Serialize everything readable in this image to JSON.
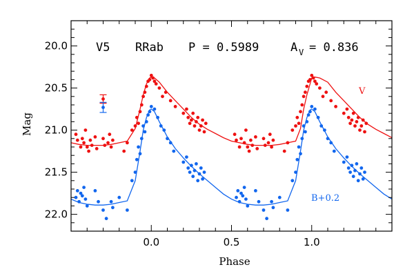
{
  "chart_data": {
    "type": "scatter",
    "title": "",
    "xlabel": "Phase",
    "ylabel": "Mag",
    "xlim": [
      -0.5,
      1.5
    ],
    "ylim": [
      22.2,
      19.7
    ],
    "y_inverted": true,
    "x_ticks": [
      "0.0",
      "0.5",
      "1.0"
    ],
    "y_ticks": [
      "20.0",
      "20.5",
      "21.0",
      "21.5",
      "22.0"
    ],
    "annotations": {
      "star": "V5",
      "type": "RRab",
      "period": "P = 0.5989",
      "amp_label": "A",
      "amp_sub": "V",
      "amp_value": "= 0.836"
    },
    "colors": {
      "V": "#ee1111",
      "B": "#1166ee"
    },
    "series": [
      {
        "name": "V",
        "label": "V",
        "color": "#ee1111",
        "fit_phase": [
          -0.5,
          -0.45,
          -0.4,
          -0.35,
          -0.3,
          -0.25,
          -0.2,
          -0.15,
          -0.1,
          -0.07,
          -0.05,
          -0.03,
          -0.01,
          0.0,
          0.02,
          0.05,
          0.1,
          0.15,
          0.2,
          0.25,
          0.3,
          0.35,
          0.4,
          0.45,
          0.5,
          0.55,
          0.6,
          0.65,
          0.7,
          0.75,
          0.8,
          0.85,
          0.9,
          0.93,
          0.95,
          0.97,
          0.99,
          1.0,
          1.02,
          1.05,
          1.1,
          1.15,
          1.2,
          1.25,
          1.3,
          1.35,
          1.4,
          1.45,
          1.5
        ],
        "fit_mag": [
          21.15,
          21.17,
          21.18,
          21.18,
          21.18,
          21.17,
          21.15,
          21.13,
          20.98,
          20.75,
          20.58,
          20.45,
          20.38,
          20.37,
          20.38,
          20.43,
          20.55,
          20.65,
          20.75,
          20.85,
          20.93,
          20.99,
          21.04,
          21.09,
          21.13,
          21.15,
          21.17,
          21.18,
          21.18,
          21.18,
          21.17,
          21.15,
          21.13,
          20.98,
          20.75,
          20.58,
          20.45,
          20.38,
          20.37,
          20.38,
          20.43,
          20.55,
          20.65,
          20.75,
          20.85,
          20.93,
          20.99,
          21.04,
          21.09
        ],
        "points": [
          [
            -0.47,
            21.05
          ],
          [
            -0.46,
            21.12
          ],
          [
            -0.44,
            21.2
          ],
          [
            -0.43,
            21.1
          ],
          [
            -0.42,
            21.15
          ],
          [
            -0.41,
            21.0
          ],
          [
            -0.4,
            21.2
          ],
          [
            -0.39,
            21.25
          ],
          [
            -0.38,
            21.12
          ],
          [
            -0.37,
            21.18
          ],
          [
            -0.35,
            21.08
          ],
          [
            -0.34,
            21.22
          ],
          [
            -0.3,
            21.1
          ],
          [
            -0.29,
            21.18
          ],
          [
            -0.27,
            21.15
          ],
          [
            -0.26,
            21.05
          ],
          [
            -0.25,
            21.2
          ],
          [
            -0.24,
            21.12
          ],
          [
            -0.17,
            21.25
          ],
          [
            -0.15,
            21.15
          ],
          [
            -0.12,
            21.0
          ],
          [
            -0.1,
            20.95
          ],
          [
            -0.09,
            20.85
          ],
          [
            -0.08,
            20.92
          ],
          [
            -0.07,
            20.78
          ],
          [
            -0.06,
            20.7
          ],
          [
            -0.05,
            20.6
          ],
          [
            -0.04,
            20.55
          ],
          [
            -0.03,
            20.48
          ],
          [
            -0.02,
            20.42
          ],
          [
            -0.01,
            20.4
          ],
          [
            0.0,
            20.35
          ],
          [
            0.01,
            20.38
          ],
          [
            0.02,
            20.42
          ],
          [
            0.03,
            20.45
          ],
          [
            0.05,
            20.5
          ],
          [
            0.07,
            20.6
          ],
          [
            0.09,
            20.55
          ],
          [
            0.12,
            20.65
          ],
          [
            0.15,
            20.72
          ],
          [
            0.2,
            20.8
          ],
          [
            0.22,
            20.75
          ],
          [
            0.23,
            20.85
          ],
          [
            0.24,
            20.92
          ],
          [
            0.25,
            20.88
          ],
          [
            0.26,
            20.8
          ],
          [
            0.27,
            20.95
          ],
          [
            0.28,
            20.9
          ],
          [
            0.29,
            20.85
          ],
          [
            0.3,
            21.0
          ],
          [
            0.31,
            20.95
          ],
          [
            0.32,
            20.88
          ],
          [
            0.33,
            21.02
          ],
          [
            0.34,
            20.92
          ],
          [
            0.52,
            21.05
          ],
          [
            0.53,
            21.12
          ],
          [
            0.55,
            21.2
          ],
          [
            0.56,
            21.1
          ],
          [
            0.58,
            21.15
          ],
          [
            0.59,
            21.0
          ],
          [
            0.6,
            21.2
          ],
          [
            0.61,
            21.25
          ],
          [
            0.62,
            21.12
          ],
          [
            0.63,
            21.18
          ],
          [
            0.65,
            21.08
          ],
          [
            0.66,
            21.22
          ],
          [
            0.7,
            21.1
          ],
          [
            0.71,
            21.18
          ],
          [
            0.73,
            21.15
          ],
          [
            0.74,
            21.05
          ],
          [
            0.75,
            21.2
          ],
          [
            0.76,
            21.12
          ],
          [
            0.83,
            21.25
          ],
          [
            0.85,
            21.15
          ],
          [
            0.88,
            21.0
          ],
          [
            0.9,
            20.95
          ],
          [
            0.91,
            20.85
          ],
          [
            0.92,
            20.92
          ],
          [
            0.93,
            20.78
          ],
          [
            0.94,
            20.7
          ],
          [
            0.95,
            20.6
          ],
          [
            0.96,
            20.55
          ],
          [
            0.97,
            20.48
          ],
          [
            0.98,
            20.42
          ],
          [
            0.99,
            20.4
          ],
          [
            1.0,
            20.35
          ],
          [
            1.01,
            20.38
          ],
          [
            1.02,
            20.42
          ],
          [
            1.03,
            20.45
          ],
          [
            1.05,
            20.5
          ],
          [
            1.07,
            20.6
          ],
          [
            1.09,
            20.55
          ],
          [
            1.12,
            20.65
          ],
          [
            1.15,
            20.72
          ],
          [
            1.2,
            20.8
          ],
          [
            1.22,
            20.75
          ],
          [
            1.23,
            20.85
          ],
          [
            1.24,
            20.92
          ],
          [
            1.25,
            20.88
          ],
          [
            1.26,
            20.8
          ],
          [
            1.27,
            20.95
          ],
          [
            1.28,
            20.9
          ],
          [
            1.29,
            20.85
          ],
          [
            1.3,
            21.0
          ],
          [
            1.31,
            20.95
          ],
          [
            1.32,
            20.88
          ],
          [
            1.33,
            21.02
          ],
          [
            1.34,
            20.92
          ]
        ]
      },
      {
        "name": "B",
        "label": "B+0.2",
        "color": "#1166ee",
        "fit_phase": [
          -0.5,
          -0.45,
          -0.4,
          -0.35,
          -0.3,
          -0.25,
          -0.2,
          -0.15,
          -0.1,
          -0.07,
          -0.05,
          -0.03,
          -0.01,
          0.0,
          0.02,
          0.05,
          0.1,
          0.15,
          0.2,
          0.25,
          0.3,
          0.35,
          0.4,
          0.45,
          0.5,
          0.55,
          0.6,
          0.65,
          0.7,
          0.75,
          0.8,
          0.85,
          0.9,
          0.93,
          0.95,
          0.97,
          0.99,
          1.0,
          1.02,
          1.05,
          1.1,
          1.15,
          1.2,
          1.25,
          1.3,
          1.35,
          1.4,
          1.45,
          1.5
        ],
        "fit_mag": [
          21.82,
          21.86,
          21.88,
          21.89,
          21.89,
          21.88,
          21.86,
          21.84,
          21.6,
          21.25,
          21.0,
          20.85,
          20.76,
          20.75,
          20.78,
          20.9,
          21.08,
          21.22,
          21.33,
          21.43,
          21.52,
          21.6,
          21.68,
          21.76,
          21.82,
          21.86,
          21.88,
          21.89,
          21.89,
          21.88,
          21.86,
          21.84,
          21.6,
          21.25,
          21.0,
          20.85,
          20.76,
          20.75,
          20.78,
          20.9,
          21.08,
          21.22,
          21.33,
          21.43,
          21.52,
          21.6,
          21.68,
          21.76,
          21.82
        ],
        "points": [
          [
            -0.47,
            21.8
          ],
          [
            -0.46,
            21.72
          ],
          [
            -0.45,
            21.85
          ],
          [
            -0.44,
            21.75
          ],
          [
            -0.43,
            21.78
          ],
          [
            -0.42,
            21.68
          ],
          [
            -0.41,
            21.82
          ],
          [
            -0.4,
            21.9
          ],
          [
            -0.35,
            21.72
          ],
          [
            -0.33,
            21.85
          ],
          [
            -0.3,
            21.95
          ],
          [
            -0.28,
            22.05
          ],
          [
            -0.25,
            21.85
          ],
          [
            -0.24,
            21.92
          ],
          [
            -0.2,
            21.8
          ],
          [
            -0.15,
            21.95
          ],
          [
            -0.12,
            21.6
          ],
          [
            -0.1,
            21.5
          ],
          [
            -0.09,
            21.35
          ],
          [
            -0.08,
            21.2
          ],
          [
            -0.07,
            21.28
          ],
          [
            -0.06,
            21.1
          ],
          [
            -0.05,
            20.95
          ],
          [
            -0.04,
            21.02
          ],
          [
            -0.03,
            20.9
          ],
          [
            -0.02,
            20.82
          ],
          [
            -0.01,
            20.78
          ],
          [
            0.0,
            20.72
          ],
          [
            0.02,
            20.75
          ],
          [
            0.04,
            20.85
          ],
          [
            0.06,
            20.95
          ],
          [
            0.08,
            21.0
          ],
          [
            0.1,
            21.1
          ],
          [
            0.12,
            21.15
          ],
          [
            0.14,
            21.25
          ],
          [
            0.2,
            21.38
          ],
          [
            0.22,
            21.32
          ],
          [
            0.23,
            21.45
          ],
          [
            0.24,
            21.5
          ],
          [
            0.25,
            21.42
          ],
          [
            0.26,
            21.55
          ],
          [
            0.27,
            21.48
          ],
          [
            0.28,
            21.4
          ],
          [
            0.29,
            21.6
          ],
          [
            0.3,
            21.52
          ],
          [
            0.31,
            21.45
          ],
          [
            0.32,
            21.58
          ],
          [
            0.33,
            21.5
          ],
          [
            0.53,
            21.8
          ],
          [
            0.54,
            21.72
          ],
          [
            0.55,
            21.85
          ],
          [
            0.56,
            21.75
          ],
          [
            0.57,
            21.78
          ],
          [
            0.58,
            21.68
          ],
          [
            0.59,
            21.82
          ],
          [
            0.6,
            21.9
          ],
          [
            0.65,
            21.72
          ],
          [
            0.67,
            21.85
          ],
          [
            0.7,
            21.95
          ],
          [
            0.72,
            22.05
          ],
          [
            0.75,
            21.85
          ],
          [
            0.76,
            21.92
          ],
          [
            0.8,
            21.8
          ],
          [
            0.85,
            21.95
          ],
          [
            0.88,
            21.6
          ],
          [
            0.9,
            21.5
          ],
          [
            0.91,
            21.35
          ],
          [
            0.92,
            21.2
          ],
          [
            0.93,
            21.28
          ],
          [
            0.94,
            21.1
          ],
          [
            0.95,
            20.95
          ],
          [
            0.96,
            21.02
          ],
          [
            0.97,
            20.9
          ],
          [
            0.98,
            20.82
          ],
          [
            0.99,
            20.78
          ],
          [
            1.0,
            20.72
          ],
          [
            1.02,
            20.75
          ],
          [
            1.04,
            20.85
          ],
          [
            1.06,
            20.95
          ],
          [
            1.08,
            21.0
          ],
          [
            1.1,
            21.1
          ],
          [
            1.12,
            21.15
          ],
          [
            1.14,
            21.25
          ],
          [
            1.2,
            21.38
          ],
          [
            1.22,
            21.32
          ],
          [
            1.23,
            21.45
          ],
          [
            1.24,
            21.5
          ],
          [
            1.25,
            21.42
          ],
          [
            1.26,
            21.55
          ],
          [
            1.27,
            21.48
          ],
          [
            1.28,
            21.4
          ],
          [
            1.29,
            21.6
          ],
          [
            1.3,
            21.52
          ],
          [
            1.31,
            21.45
          ],
          [
            1.32,
            21.58
          ],
          [
            1.33,
            21.5
          ]
        ]
      }
    ],
    "error_bars": [
      {
        "series": "V",
        "phase": -0.3,
        "mag": 20.63,
        "err": 0.05
      },
      {
        "series": "B",
        "phase": -0.3,
        "mag": 20.73,
        "err": 0.06
      }
    ]
  }
}
